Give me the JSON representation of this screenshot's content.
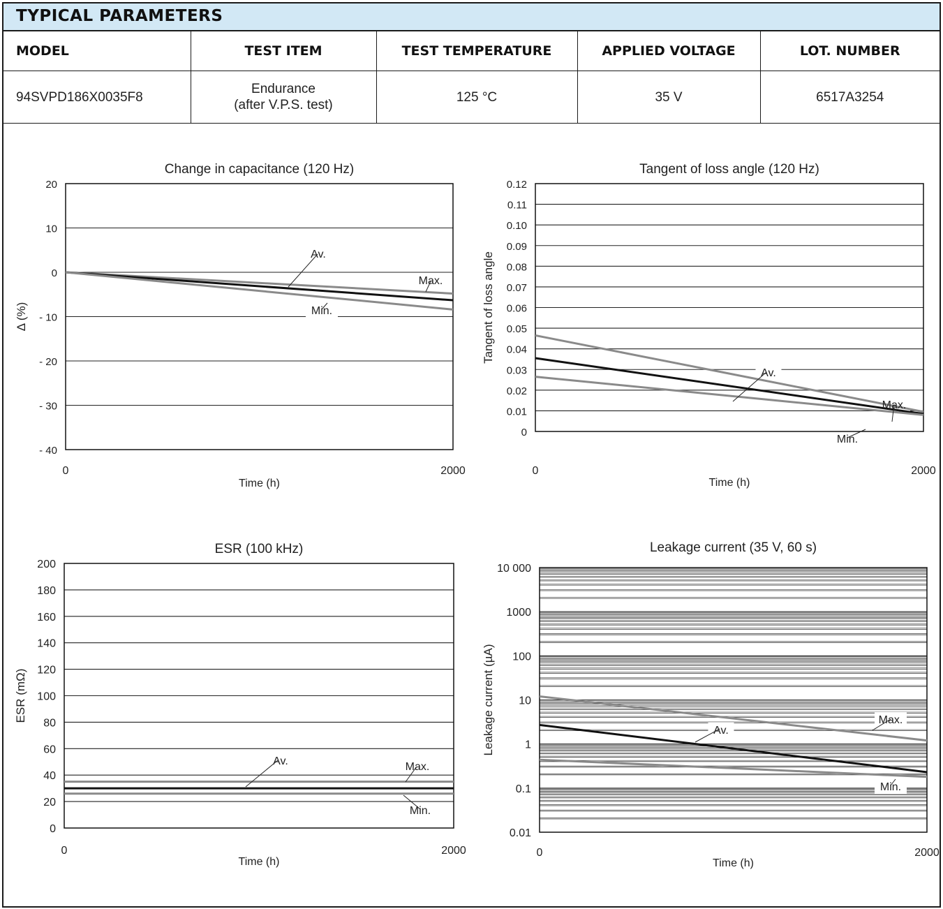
{
  "header": {
    "title": "TYPICAL PARAMETERS"
  },
  "table": {
    "columns": [
      "MODEL",
      "TEST ITEM",
      "TEST TEMPERATURE",
      "APPLIED VOLTAGE",
      "LOT. NUMBER"
    ],
    "row": {
      "model": "94SVPD186X0035F8",
      "test_item_line1": "Endurance",
      "test_item_line2": "(after V.P.S. test)",
      "temperature": "125 °C",
      "voltage": "35 V",
      "lot": "6517A3254"
    }
  },
  "chart_data": [
    {
      "type": "line",
      "title": "Change in capacitance (120 Hz)",
      "xlabel": "Time (h)",
      "ylabel": "Δ (%)",
      "xlim": [
        0,
        2000
      ],
      "ylim": [
        -40,
        20
      ],
      "x_ticks": [
        0,
        2000
      ],
      "y_ticks": [
        20,
        10,
        0,
        -10,
        -20,
        -30,
        -40
      ],
      "y_tick_labels": [
        "20",
        "10",
        "0",
        "- 10",
        "- 20",
        "- 30",
        "- 40"
      ],
      "gridlines_y": [
        10,
        0,
        -10,
        -20,
        -30
      ],
      "series": [
        {
          "name": "Max.",
          "color": "#8a8a8a",
          "x": [
            0,
            2000
          ],
          "y": [
            0,
            -4.8
          ]
        },
        {
          "name": "Av.",
          "color": "#111111",
          "x": [
            0,
            2000
          ],
          "y": [
            0,
            -6.3
          ]
        },
        {
          "name": "Min.",
          "color": "#8a8a8a",
          "x": [
            0,
            2000
          ],
          "y": [
            0,
            -8.4
          ]
        }
      ]
    },
    {
      "type": "line",
      "title": "Tangent of loss angle (120 Hz)",
      "xlabel": "Time (h)",
      "ylabel": "Tangent of loss angle",
      "xlim": [
        0,
        2000
      ],
      "ylim": [
        0,
        0.12
      ],
      "x_ticks": [
        0,
        2000
      ],
      "y_ticks": [
        0.12,
        0.11,
        0.1,
        0.09,
        0.08,
        0.07,
        0.06,
        0.05,
        0.04,
        0.03,
        0.02,
        0.01,
        0
      ],
      "y_tick_labels": [
        "0.12",
        "0.11",
        "0.10",
        "0.09",
        "0.08",
        "0.07",
        "0.06",
        "0.05",
        "0.04",
        "0.03",
        "0.02",
        "0.01",
        "0"
      ],
      "gridlines_y": [
        0.11,
        0.1,
        0.09,
        0.08,
        0.07,
        0.06,
        0.05,
        0.04,
        0.03,
        0.02,
        0.01
      ],
      "series": [
        {
          "name": "Max.",
          "color": "#8a8a8a",
          "x": [
            0,
            2000
          ],
          "y": [
            0.0465,
            0.0095
          ]
        },
        {
          "name": "Av.",
          "color": "#111111",
          "x": [
            0,
            2000
          ],
          "y": [
            0.0355,
            0.0085
          ]
        },
        {
          "name": "Min.",
          "color": "#8a8a8a",
          "x": [
            0,
            2000
          ],
          "y": [
            0.0265,
            0.008
          ]
        }
      ]
    },
    {
      "type": "line",
      "title": "ESR (100 kHz)",
      "xlabel": "Time (h)",
      "ylabel": "ESR (mΩ)",
      "xlim": [
        0,
        2000
      ],
      "ylim": [
        0,
        200
      ],
      "x_ticks": [
        0,
        2000
      ],
      "y_ticks": [
        200,
        180,
        160,
        140,
        120,
        100,
        80,
        60,
        40,
        20,
        0
      ],
      "y_tick_labels": [
        "200",
        "180",
        "160",
        "140",
        "120",
        "100",
        "80",
        "60",
        "40",
        "20",
        "0"
      ],
      "gridlines_y": [
        180,
        160,
        140,
        120,
        100,
        80,
        60,
        40,
        20
      ],
      "series": [
        {
          "name": "Max.",
          "color": "#8a8a8a",
          "x": [
            0,
            2000
          ],
          "y": [
            35,
            35
          ]
        },
        {
          "name": "Av.",
          "color": "#111111",
          "x": [
            0,
            2000
          ],
          "y": [
            30,
            30
          ]
        },
        {
          "name": "Min.",
          "color": "#8a8a8a",
          "x": [
            0,
            2000
          ],
          "y": [
            26,
            26
          ]
        }
      ]
    },
    {
      "type": "line",
      "title": "Leakage current (35 V, 60 s)",
      "xlabel": "Time (h)",
      "ylabel": "Leakage current (µA)",
      "xlim": [
        0,
        2000
      ],
      "ylim": [
        0.01,
        10000
      ],
      "yscale": "log",
      "x_ticks": [
        0,
        2000
      ],
      "y_ticks": [
        10000,
        1000,
        100,
        10,
        1,
        0.1,
        0.01
      ],
      "y_tick_labels": [
        "10 000",
        "1000",
        "100",
        "10",
        "1",
        "0.1",
        "0.01"
      ],
      "series": [
        {
          "name": "Max.",
          "color": "#8a8a8a",
          "x": [
            0,
            2000
          ],
          "y": [
            12,
            1.2
          ]
        },
        {
          "name": "Av.",
          "color": "#111111",
          "x": [
            0,
            2000
          ],
          "y": [
            2.7,
            0.23
          ]
        },
        {
          "name": "Min.",
          "color": "#8a8a8a",
          "x": [
            0,
            2000
          ],
          "y": [
            0.44,
            0.18
          ]
        }
      ]
    }
  ]
}
